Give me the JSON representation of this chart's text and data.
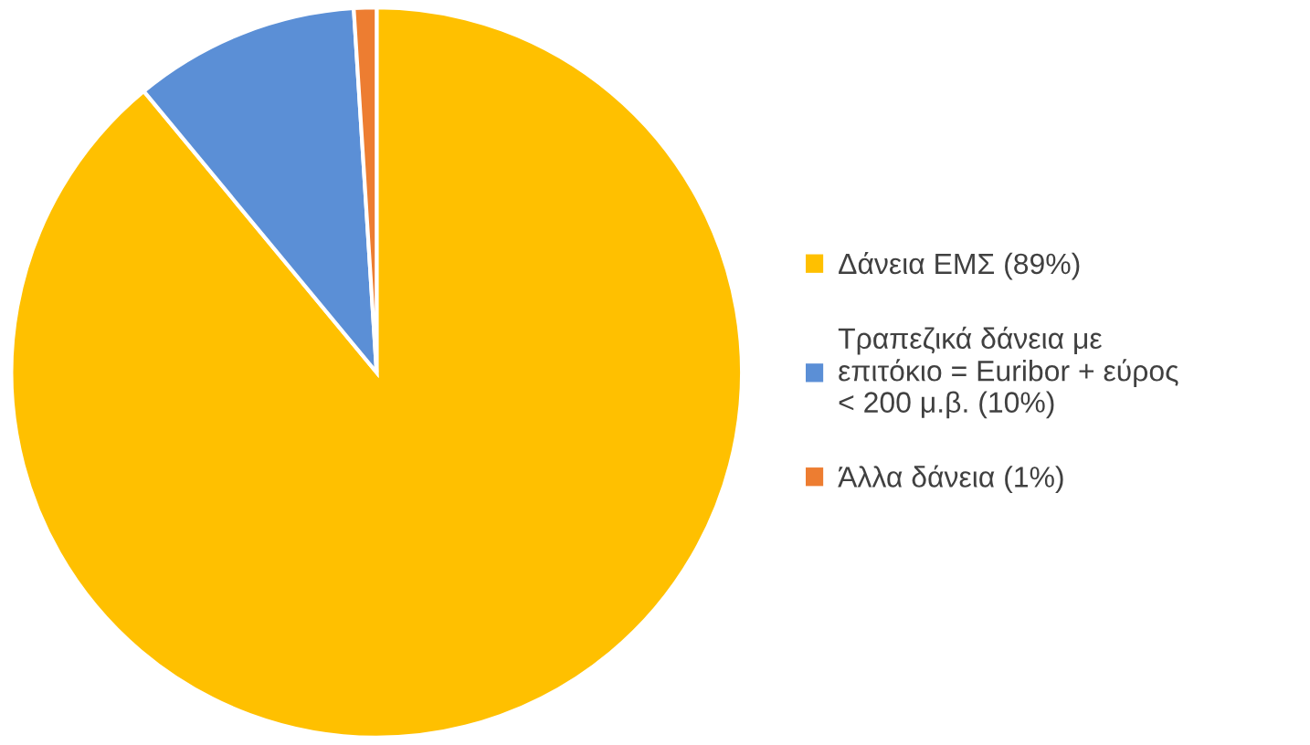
{
  "chart_data": {
    "type": "pie",
    "categories": [
      "Δάνεια ΕΜΣ (89%)",
      "Τραπεζικά δάνεια με\nεπιτόκιο = Euribor + εύρος\n< 200 μ.β. (10%)",
      "Άλλα δάνεια (1%)"
    ],
    "values": [
      89,
      10,
      1
    ],
    "colors": [
      "#ffc000",
      "#5b8fd6",
      "#ed7d31"
    ],
    "legend": "right"
  }
}
